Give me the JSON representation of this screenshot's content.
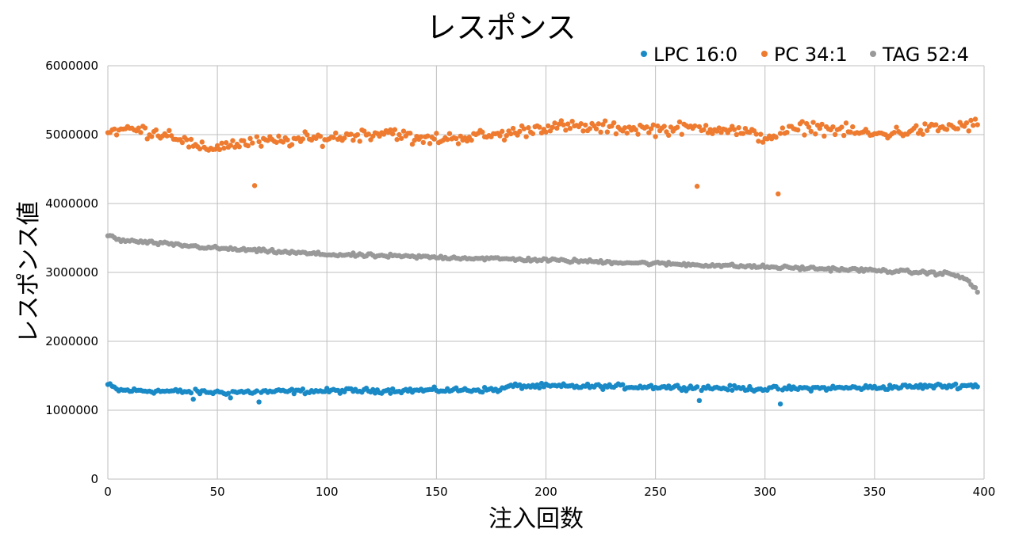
{
  "chart_data": {
    "type": "scatter",
    "title": "レスポンス",
    "xlabel": "注入回数",
    "ylabel": "レスポンス値",
    "xlim": [
      0,
      400
    ],
    "ylim": [
      0,
      6000000
    ],
    "x_ticks": [
      0,
      50,
      100,
      150,
      200,
      250,
      300,
      350,
      400
    ],
    "y_ticks": [
      0,
      1000000,
      2000000,
      3000000,
      4000000,
      5000000,
      6000000
    ],
    "x_tick_labels": [
      "0",
      "50",
      "100",
      "150",
      "200",
      "250",
      "300",
      "350",
      "400"
    ],
    "y_tick_labels": [
      "0",
      "1000000",
      "2000000",
      "3000000",
      "4000000",
      "5000000",
      "6000000"
    ],
    "grid": true,
    "legend_position": "top-right",
    "series": [
      {
        "name": "LPC 16:0",
        "color": "#1a8ac6",
        "trend": [
          [
            0,
            1370000
          ],
          [
            5,
            1290000
          ],
          [
            50,
            1260000
          ],
          [
            100,
            1280000
          ],
          [
            150,
            1290000
          ],
          [
            180,
            1300000
          ],
          [
            183,
            1350000
          ],
          [
            250,
            1340000
          ],
          [
            300,
            1310000
          ],
          [
            350,
            1330000
          ],
          [
            397,
            1360000
          ]
        ],
        "noise": 35000,
        "outliers": [
          [
            39,
            1160000
          ],
          [
            56,
            1180000
          ],
          [
            69,
            1120000
          ],
          [
            270,
            1140000
          ],
          [
            307,
            1090000
          ]
        ]
      },
      {
        "name": "PC 34:1",
        "color": "#ee7b2f",
        "trend": [
          [
            0,
            5050000
          ],
          [
            10,
            5080000
          ],
          [
            30,
            5000000
          ],
          [
            42,
            4780000
          ],
          [
            55,
            4860000
          ],
          [
            100,
            4950000
          ],
          [
            130,
            5050000
          ],
          [
            140,
            4920000
          ],
          [
            180,
            5000000
          ],
          [
            200,
            5120000
          ],
          [
            250,
            5080000
          ],
          [
            280,
            5100000
          ],
          [
            300,
            4960000
          ],
          [
            320,
            5120000
          ],
          [
            350,
            5000000
          ],
          [
            397,
            5150000
          ]
        ],
        "noise": 90000,
        "outliers": [
          [
            67,
            4260000
          ],
          [
            269,
            4250000
          ],
          [
            306,
            4140000
          ]
        ]
      },
      {
        "name": "TAG 52:4",
        "color": "#999999",
        "trend": [
          [
            0,
            3540000
          ],
          [
            5,
            3470000
          ],
          [
            50,
            3350000
          ],
          [
            100,
            3260000
          ],
          [
            150,
            3220000
          ],
          [
            200,
            3180000
          ],
          [
            250,
            3130000
          ],
          [
            300,
            3080000
          ],
          [
            350,
            3030000
          ],
          [
            385,
            2980000
          ],
          [
            393,
            2880000
          ],
          [
            397,
            2720000
          ]
        ],
        "noise": 25000,
        "outliers": []
      }
    ]
  }
}
